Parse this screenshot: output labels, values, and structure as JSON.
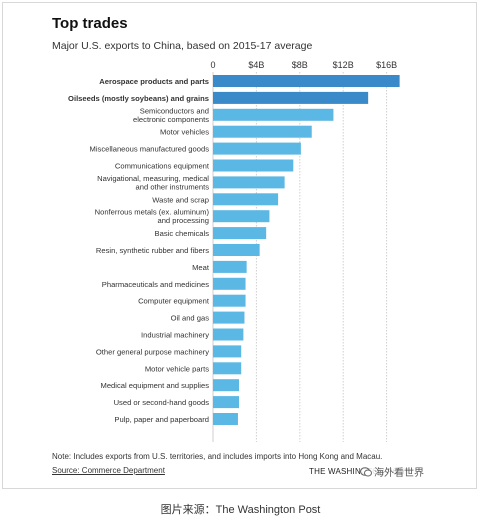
{
  "header": {
    "title": "Top trades",
    "subtitle": "Major U.S. exports to China, based on 2015-17 average"
  },
  "footer": {
    "note": "Note: Includes exports from U.S. territories, and includes imports into Hong Kong and Macau.",
    "source": "Source: Commerce Department",
    "publisher": "THE WASHINGTON POST",
    "watermark": "海外看世界",
    "caption": "图片来源：The Washington Post"
  },
  "colors": {
    "highlight_bar": "#3a89c9",
    "bar": "#5bb7e3",
    "grid": "#cfcfcf"
  },
  "chart_data": {
    "type": "bar",
    "orientation": "horizontal",
    "title": "Top trades",
    "subtitle": "Major U.S. exports to China, based on 2015-17 average",
    "xlabel": "",
    "ylabel": "",
    "xlim": [
      0,
      18
    ],
    "ticks": [
      {
        "value": 0,
        "label": "0"
      },
      {
        "value": 4,
        "label": "$4B"
      },
      {
        "value": 8,
        "label": "$8B"
      },
      {
        "value": 12,
        "label": "$12B"
      },
      {
        "value": 16,
        "label": "$16B"
      }
    ],
    "grid": true,
    "categories": [
      {
        "label": "Aerospace products and parts",
        "value": 17.2,
        "highlight": true
      },
      {
        "label": "Oilseeds (mostly soybeans) and grains",
        "value": 14.3,
        "highlight": true
      },
      {
        "label": "Semiconductors and electronic components",
        "value": 11.1
      },
      {
        "label": "Motor vehicles",
        "value": 9.1
      },
      {
        "label": "Miscellaneous manufactured goods",
        "value": 8.1
      },
      {
        "label": "Communications equipment",
        "value": 7.4
      },
      {
        "label": "Navigational, measuring, medical and other instruments",
        "value": 6.6
      },
      {
        "label": "Waste and scrap",
        "value": 6.0
      },
      {
        "label": "Nonferrous metals (ex. aluminum) and processing",
        "value": 5.2
      },
      {
        "label": "Basic chemicals",
        "value": 4.9
      },
      {
        "label": "Resin, synthetic rubber and fibers",
        "value": 4.3
      },
      {
        "label": "Meat",
        "value": 3.1
      },
      {
        "label": "Pharmaceuticals and medicines",
        "value": 3.0
      },
      {
        "label": "Computer equipment",
        "value": 3.0
      },
      {
        "label": "Oil and gas",
        "value": 2.9
      },
      {
        "label": "Industrial machinery",
        "value": 2.8
      },
      {
        "label": "Other general purpose machinery",
        "value": 2.6
      },
      {
        "label": "Motor vehicle parts",
        "value": 2.6
      },
      {
        "label": "Medical equipment and supplies",
        "value": 2.4
      },
      {
        "label": "Used or second-hand goods",
        "value": 2.4
      },
      {
        "label": "Pulp, paper and paperboard",
        "value": 2.3
      }
    ]
  }
}
